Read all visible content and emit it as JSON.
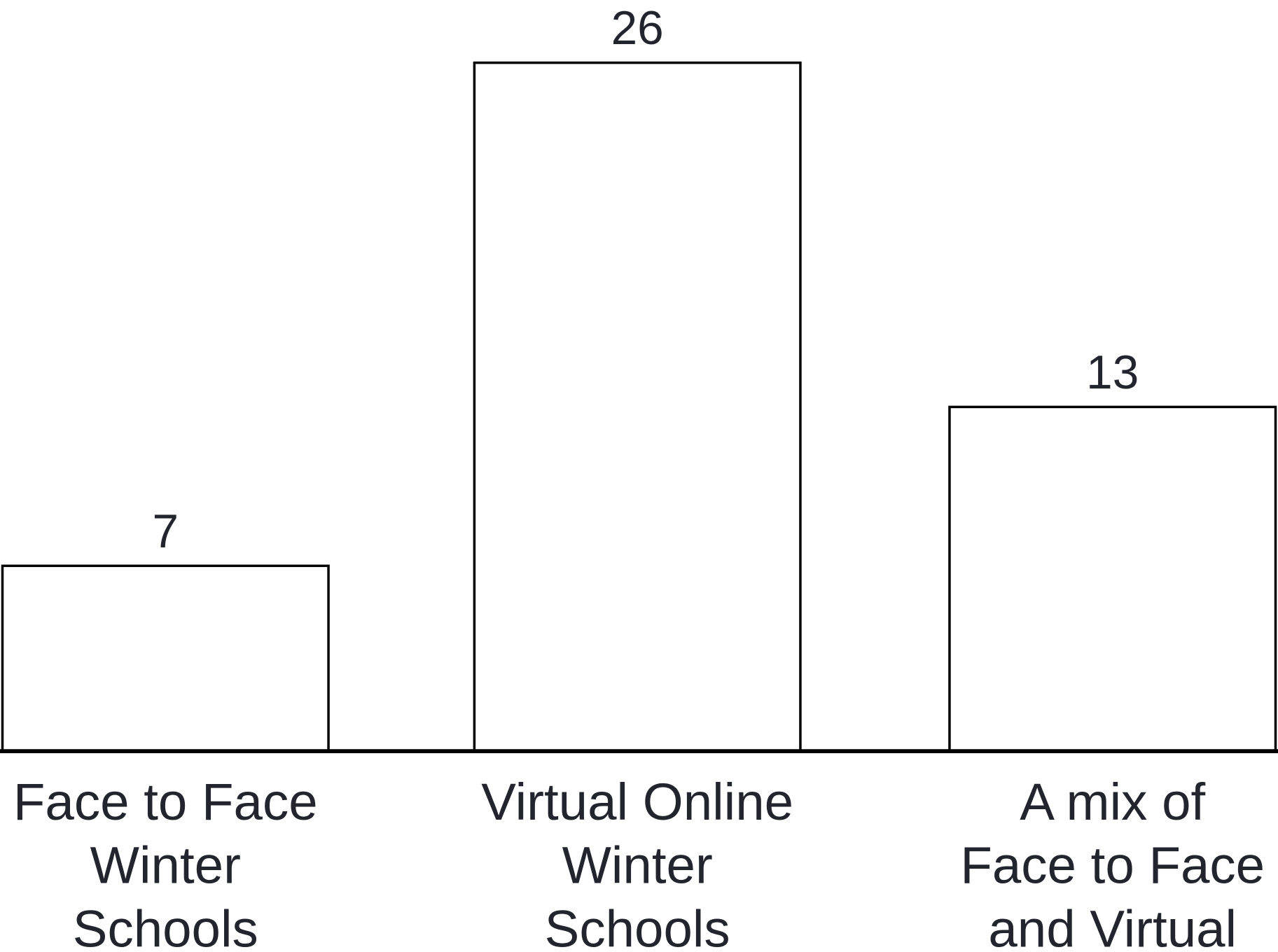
{
  "chart_data": {
    "type": "bar",
    "categories": [
      "Face to Face\nWinter\nSchools",
      "Virtual Online\nWinter\nSchools",
      "A mix of\nFace to Face\nand Virtual"
    ],
    "values": [
      7,
      26,
      13
    ],
    "color": "#ffffff",
    "edgecolor": "#000000"
  }
}
